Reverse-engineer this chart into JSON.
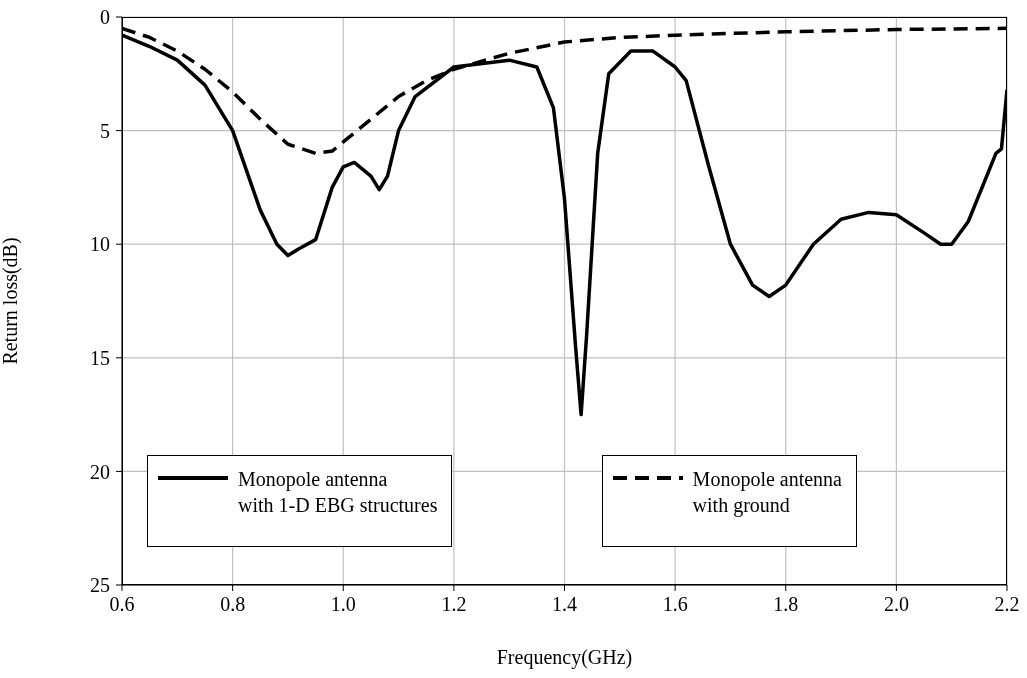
{
  "chart_data": {
    "type": "line",
    "xlabel": "Frequency(GHz)",
    "ylabel": "Return loss(dB)",
    "xlim": [
      0.6,
      2.2
    ],
    "xticks": [
      0.6,
      0.8,
      {
        "value": 1.0,
        "label": "1.0"
      },
      1.2,
      1.4,
      1.6,
      1.8,
      {
        "value": 2.0,
        "label": "2.0"
      },
      2.2
    ],
    "ylim": [
      25,
      0
    ],
    "yticks": [
      0,
      5,
      10,
      15,
      20,
      25
    ],
    "grid": true,
    "legend": "bottom",
    "marker": "none",
    "series": [
      {
        "name": "Monopole antenna\nwith 1-D EBG structures",
        "color": "#000000",
        "line_style": "solid",
        "x": [
          0.6,
          0.65,
          0.7,
          0.75,
          0.8,
          0.85,
          0.88,
          0.9,
          0.92,
          0.95,
          0.98,
          1.0,
          1.02,
          1.05,
          1.065,
          1.08,
          1.1,
          1.13,
          1.2,
          1.3,
          1.35,
          1.38,
          1.4,
          1.42,
          1.43,
          1.44,
          1.46,
          1.48,
          1.52,
          1.56,
          1.6,
          1.62,
          1.66,
          1.7,
          1.74,
          1.77,
          1.8,
          1.85,
          1.9,
          1.95,
          2.0,
          2.05,
          2.08,
          2.1,
          2.13,
          2.18,
          2.19,
          2.2
        ],
        "values": [
          0.8,
          1.3,
          1.9,
          3.0,
          5.0,
          8.5,
          10.0,
          10.5,
          10.2,
          9.8,
          7.5,
          6.6,
          6.4,
          7.0,
          7.6,
          7.0,
          5.0,
          3.5,
          2.2,
          1.9,
          2.2,
          4.0,
          8.0,
          14.5,
          17.5,
          14.0,
          6.0,
          2.5,
          1.5,
          1.5,
          2.2,
          2.8,
          6.5,
          10.0,
          11.8,
          12.3,
          11.8,
          10.0,
          8.9,
          8.6,
          8.7,
          9.5,
          10.0,
          10.0,
          9.0,
          6.0,
          5.8,
          3.2
        ]
      },
      {
        "name": "Monopole antenna\nwith ground",
        "color": "#000000",
        "line_style": "dashed",
        "x": [
          0.6,
          0.65,
          0.7,
          0.75,
          0.8,
          0.85,
          0.9,
          0.95,
          0.98,
          1.0,
          1.05,
          1.1,
          1.15,
          1.2,
          1.3,
          1.4,
          1.5,
          1.6,
          1.8,
          2.0,
          2.2
        ],
        "values": [
          0.5,
          0.9,
          1.5,
          2.3,
          3.3,
          4.5,
          5.6,
          6.0,
          5.9,
          5.5,
          4.5,
          3.5,
          2.8,
          2.3,
          1.6,
          1.1,
          0.9,
          0.8,
          0.65,
          0.55,
          0.5
        ]
      }
    ]
  }
}
